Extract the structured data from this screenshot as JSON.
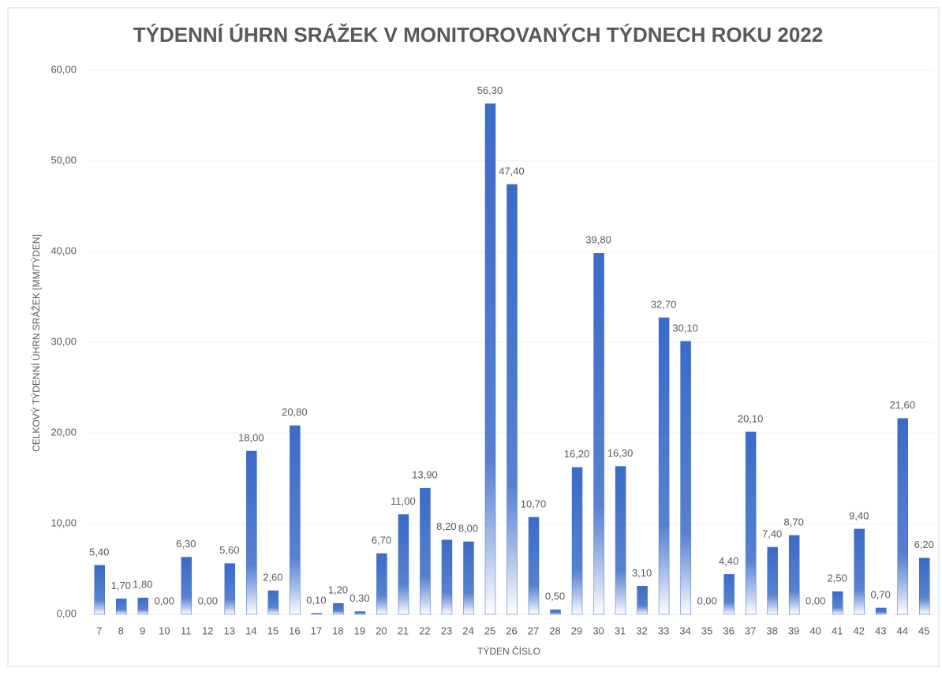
{
  "chart_data": {
    "type": "bar",
    "title": "TÝDENNÍ ÚHRN SRÁŽEK V MONITOROVANÝCH TÝDNECH ROKU 2022",
    "x_label": "TÝDEN ČÍSLO",
    "y_label": "CELKOVÝ TÝDENNÍ ÚHRN SRÁŽEK [MM/TÝDEN]",
    "categories": [
      "7",
      "8",
      "9",
      "10",
      "11",
      "12",
      "13",
      "14",
      "15",
      "16",
      "17",
      "18",
      "19",
      "20",
      "21",
      "22",
      "23",
      "24",
      "25",
      "26",
      "27",
      "28",
      "29",
      "30",
      "31",
      "32",
      "33",
      "34",
      "35",
      "36",
      "37",
      "38",
      "39",
      "40",
      "41",
      "42",
      "43",
      "44",
      "45"
    ],
    "values": [
      5.4,
      1.7,
      1.8,
      0,
      6.3,
      0,
      5.6,
      18,
      2.6,
      20.8,
      0.1,
      1.2,
      0.3,
      6.7,
      11,
      13.9,
      8.2,
      8,
      56.3,
      47.4,
      10.7,
      0.5,
      16.2,
      39.8,
      16.3,
      3.1,
      32.7,
      30.1,
      0,
      4.4,
      20.1,
      7.4,
      8.7,
      0,
      2.5,
      9.4,
      0.7,
      21.6,
      6.2
    ],
    "value_labels": [
      "5,40",
      "1,70",
      "1,80",
      "0,00",
      "6,30",
      "0,00",
      "5,60",
      "18,00",
      "2,60",
      "20,80",
      "0,10",
      "1,20",
      "0,30",
      "6,70",
      "11,00",
      "13,90",
      "8,20",
      "8,00",
      "56,30",
      "47,40",
      "10,70",
      "0,50",
      "16,20",
      "39,80",
      "16,30",
      "3,10",
      "32,70",
      "30,10",
      "0,00",
      "4,40",
      "20,10",
      "7,40",
      "8,70",
      "0,00",
      "2,50",
      "9,40",
      "0,70",
      "21,60",
      "6,20"
    ],
    "color": "#3a6bc8",
    "ylim": [
      0,
      60
    ],
    "yticks": [
      {
        "value": 0,
        "label": "0,00"
      },
      {
        "value": 10,
        "label": "10,00"
      },
      {
        "value": 20,
        "label": "20,00"
      },
      {
        "value": 30,
        "label": "30,00"
      },
      {
        "value": 40,
        "label": "40,00"
      },
      {
        "value": 50,
        "label": "50,00"
      },
      {
        "value": 60,
        "label": "60,00"
      }
    ],
    "grid": true
  }
}
